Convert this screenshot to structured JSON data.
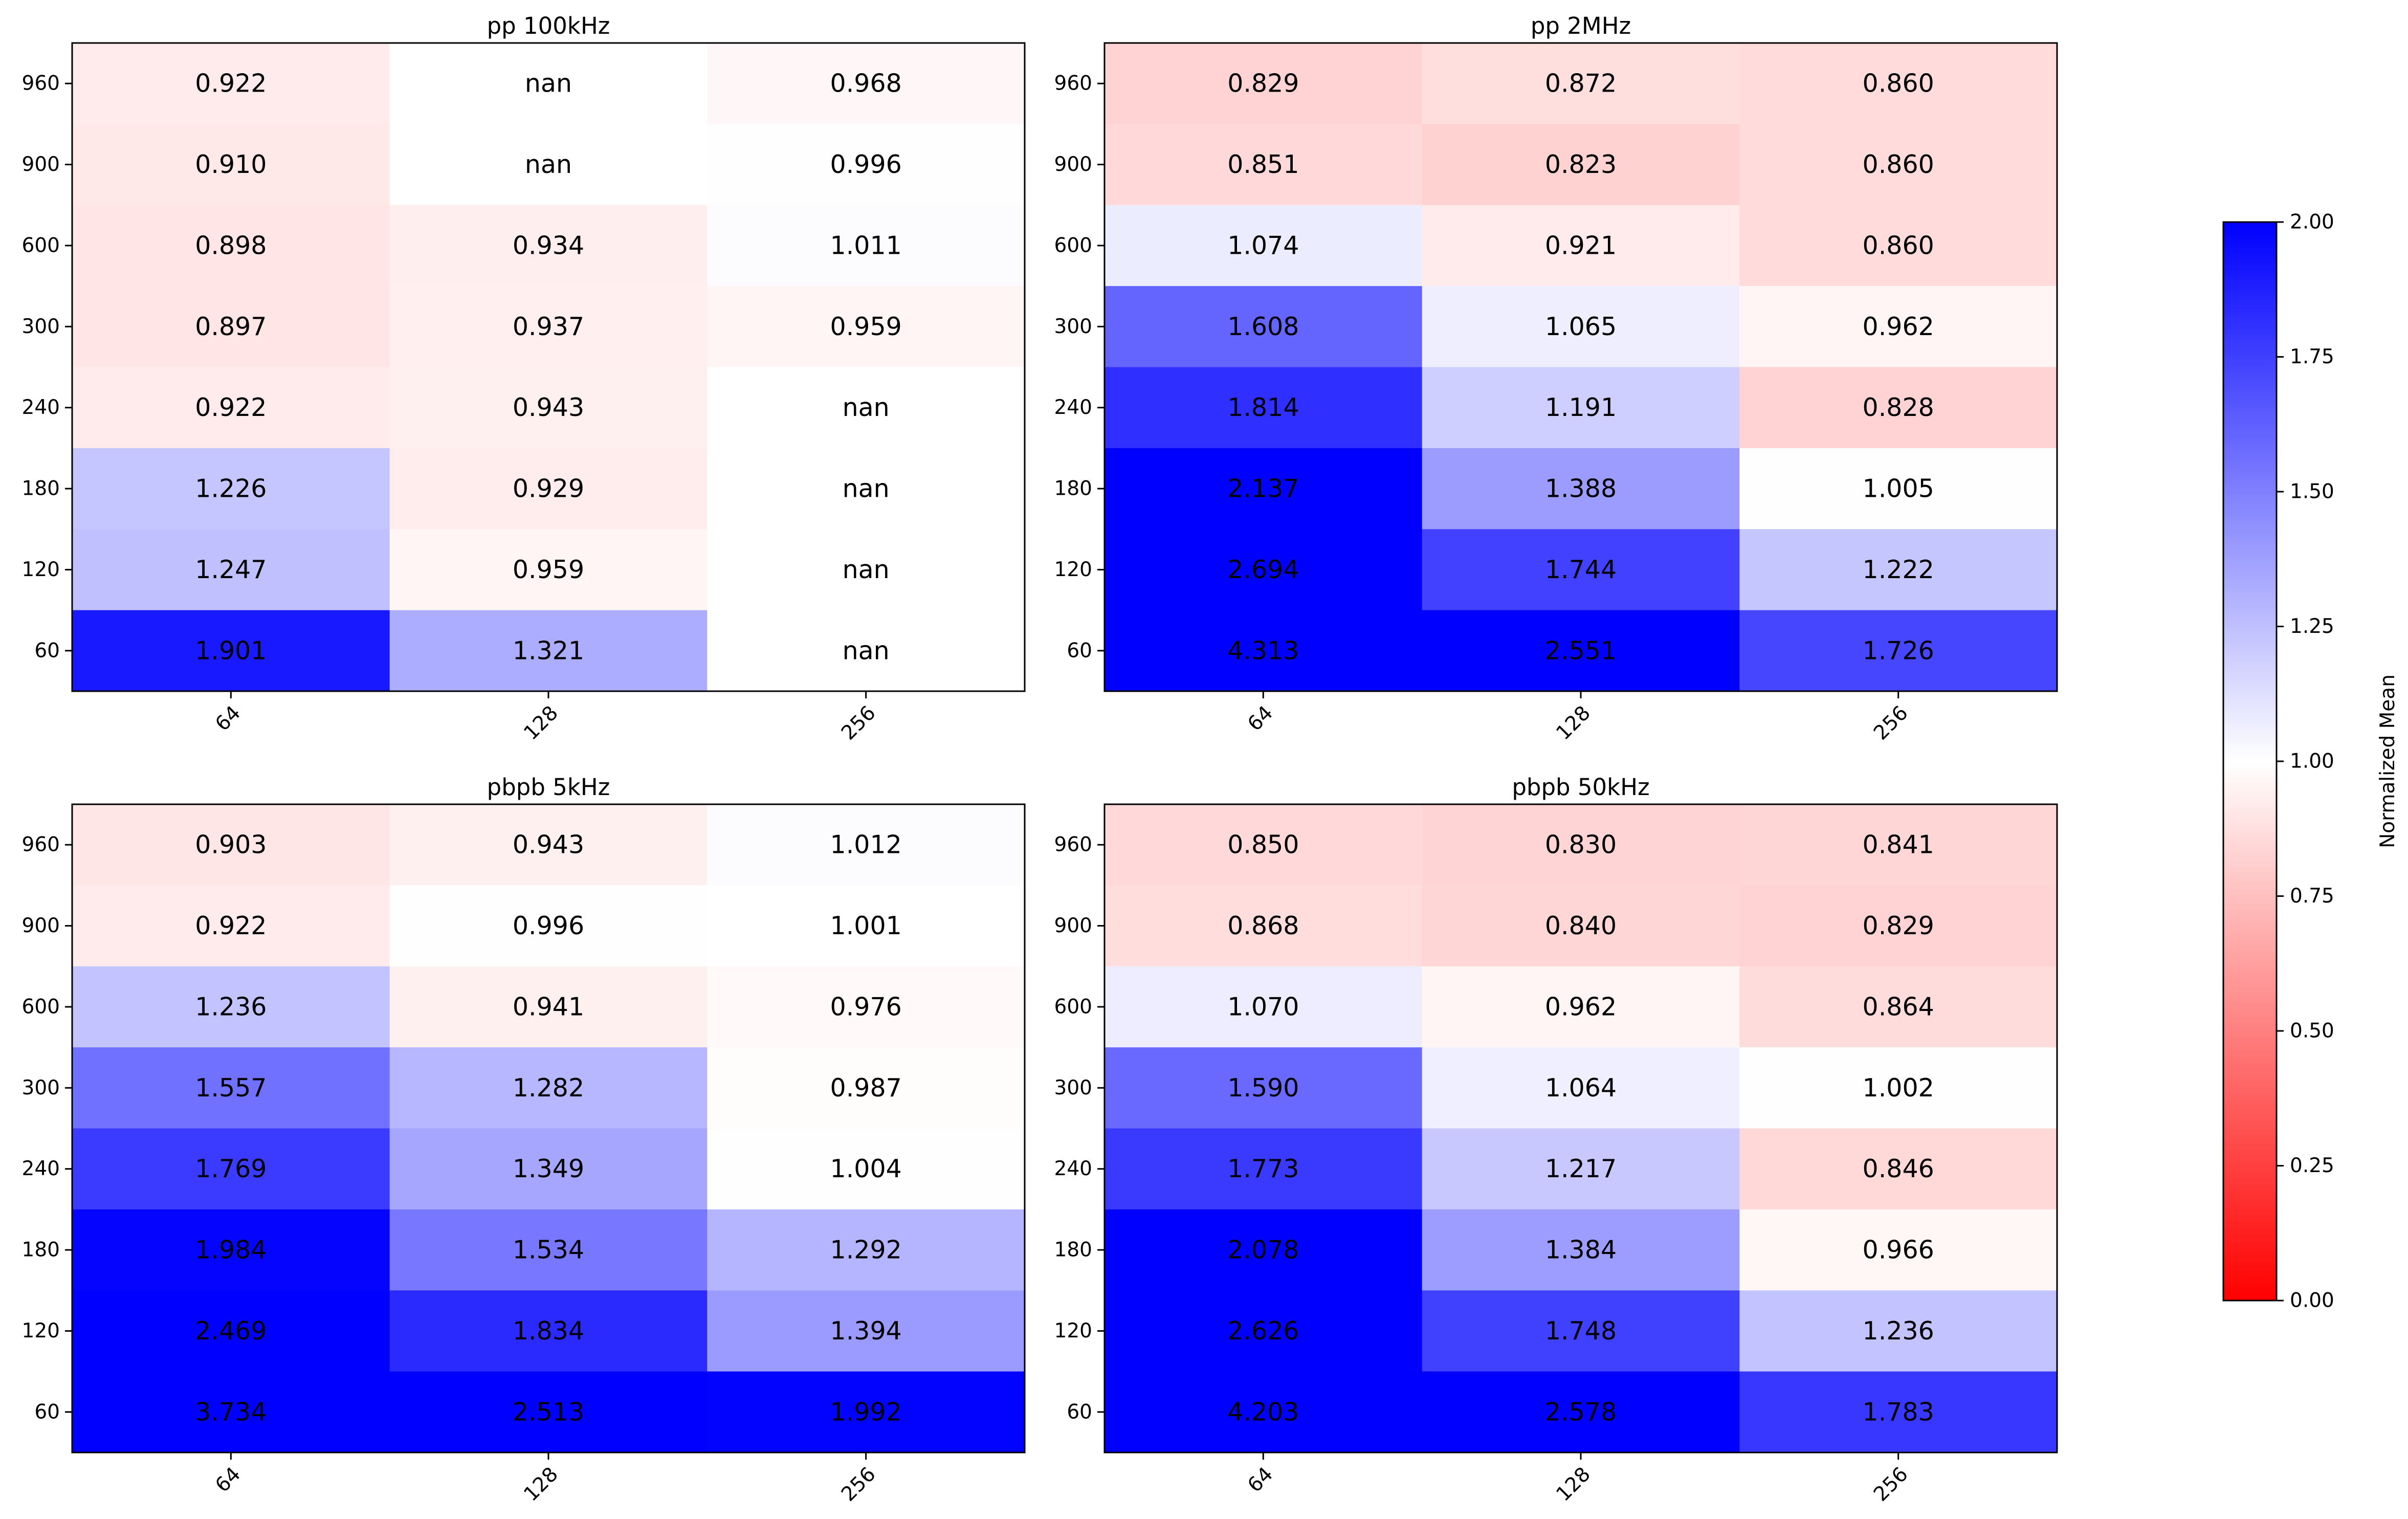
{
  "chart_data": [
    {
      "type": "heatmap",
      "title": "pp 100kHz",
      "x_categories": [
        "64",
        "128",
        "256"
      ],
      "y_categories": [
        "960",
        "900",
        "600",
        "300",
        "240",
        "180",
        "120",
        "60"
      ],
      "values": [
        [
          0.922,
          null,
          0.968
        ],
        [
          0.91,
          null,
          0.996
        ],
        [
          0.898,
          0.934,
          1.011
        ],
        [
          0.897,
          0.937,
          0.959
        ],
        [
          0.922,
          0.943,
          null
        ],
        [
          1.226,
          0.929,
          null
        ],
        [
          1.247,
          0.959,
          null
        ],
        [
          1.901,
          1.321,
          null
        ]
      ],
      "labels": [
        [
          "0.922",
          "nan",
          "0.968"
        ],
        [
          "0.910",
          "nan",
          "0.996"
        ],
        [
          "0.898",
          "0.934",
          "1.011"
        ],
        [
          "0.897",
          "0.937",
          "0.959"
        ],
        [
          "0.922",
          "0.943",
          "nan"
        ],
        [
          "1.226",
          "0.929",
          "nan"
        ],
        [
          "1.247",
          "0.959",
          "nan"
        ],
        [
          "1.901",
          "1.321",
          "nan"
        ]
      ]
    },
    {
      "type": "heatmap",
      "title": "pp 2MHz",
      "x_categories": [
        "64",
        "128",
        "256"
      ],
      "y_categories": [
        "960",
        "900",
        "600",
        "300",
        "240",
        "180",
        "120",
        "60"
      ],
      "values": [
        [
          0.829,
          0.872,
          0.86
        ],
        [
          0.851,
          0.823,
          0.86
        ],
        [
          1.074,
          0.921,
          0.86
        ],
        [
          1.608,
          1.065,
          0.962
        ],
        [
          1.814,
          1.191,
          0.828
        ],
        [
          2.137,
          1.388,
          1.005
        ],
        [
          2.694,
          1.744,
          1.222
        ],
        [
          4.313,
          2.551,
          1.726
        ]
      ],
      "labels": [
        [
          "0.829",
          "0.872",
          "0.860"
        ],
        [
          "0.851",
          "0.823",
          "0.860"
        ],
        [
          "1.074",
          "0.921",
          "0.860"
        ],
        [
          "1.608",
          "1.065",
          "0.962"
        ],
        [
          "1.814",
          "1.191",
          "0.828"
        ],
        [
          "2.137",
          "1.388",
          "1.005"
        ],
        [
          "2.694",
          "1.744",
          "1.222"
        ],
        [
          "4.313",
          "2.551",
          "1.726"
        ]
      ]
    },
    {
      "type": "heatmap",
      "title": "pbpb 5kHz",
      "x_categories": [
        "64",
        "128",
        "256"
      ],
      "y_categories": [
        "960",
        "900",
        "600",
        "300",
        "240",
        "180",
        "120",
        "60"
      ],
      "values": [
        [
          0.903,
          0.943,
          1.012
        ],
        [
          0.922,
          0.996,
          1.001
        ],
        [
          1.236,
          0.941,
          0.976
        ],
        [
          1.557,
          1.282,
          0.987
        ],
        [
          1.769,
          1.349,
          1.004
        ],
        [
          1.984,
          1.534,
          1.292
        ],
        [
          2.469,
          1.834,
          1.394
        ],
        [
          3.734,
          2.513,
          1.992
        ]
      ],
      "labels": [
        [
          "0.903",
          "0.943",
          "1.012"
        ],
        [
          "0.922",
          "0.996",
          "1.001"
        ],
        [
          "1.236",
          "0.941",
          "0.976"
        ],
        [
          "1.557",
          "1.282",
          "0.987"
        ],
        [
          "1.769",
          "1.349",
          "1.004"
        ],
        [
          "1.984",
          "1.534",
          "1.292"
        ],
        [
          "2.469",
          "1.834",
          "1.394"
        ],
        [
          "3.734",
          "2.513",
          "1.992"
        ]
      ]
    },
    {
      "type": "heatmap",
      "title": "pbpb 50kHz",
      "x_categories": [
        "64",
        "128",
        "256"
      ],
      "y_categories": [
        "960",
        "900",
        "600",
        "300",
        "240",
        "180",
        "120",
        "60"
      ],
      "values": [
        [
          0.85,
          0.83,
          0.841
        ],
        [
          0.868,
          0.84,
          0.829
        ],
        [
          1.07,
          0.962,
          0.864
        ],
        [
          1.59,
          1.064,
          1.002
        ],
        [
          1.773,
          1.217,
          0.846
        ],
        [
          2.078,
          1.384,
          0.966
        ],
        [
          2.626,
          1.748,
          1.236
        ],
        [
          4.203,
          2.578,
          1.783
        ]
      ],
      "labels": [
        [
          "0.850",
          "0.830",
          "0.841"
        ],
        [
          "0.868",
          "0.840",
          "0.829"
        ],
        [
          "1.070",
          "0.962",
          "0.864"
        ],
        [
          "1.590",
          "1.064",
          "1.002"
        ],
        [
          "1.773",
          "1.217",
          "0.846"
        ],
        [
          "2.078",
          "1.384",
          "0.966"
        ],
        [
          "2.626",
          "1.748",
          "1.236"
        ],
        [
          "4.203",
          "2.578",
          "1.783"
        ]
      ]
    }
  ],
  "colorbar": {
    "label": "Normalized Mean",
    "range": [
      0,
      2
    ],
    "ticks": [
      "0.00",
      "0.25",
      "0.50",
      "0.75",
      "1.00",
      "1.25",
      "1.50",
      "1.75",
      "2.00"
    ],
    "colors": {
      "low": "#ff0000",
      "mid": "#ffffff",
      "high": "#0000ff"
    }
  }
}
